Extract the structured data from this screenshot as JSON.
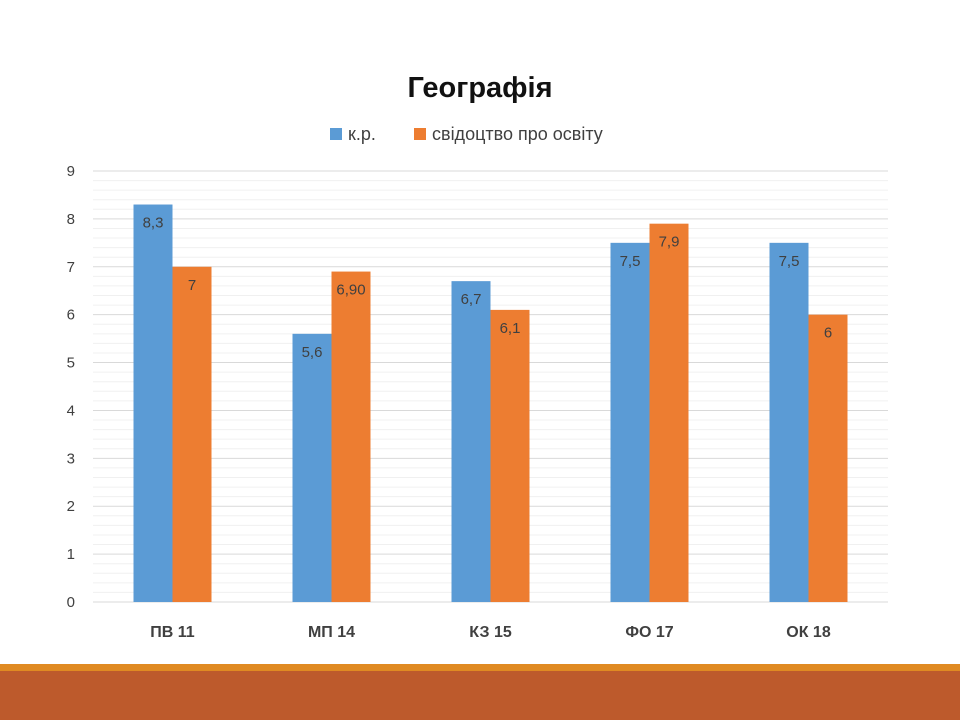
{
  "chart_data": {
    "type": "bar",
    "title": "Географія",
    "categories": [
      "ПВ 11",
      "МП 14",
      "КЗ 15",
      "ФО 17",
      "ОК 18"
    ],
    "series": [
      {
        "name": "к.р.",
        "color": "#5b9bd5",
        "values": [
          8.3,
          5.6,
          6.7,
          7.5,
          7.5
        ],
        "labels": [
          "8,3",
          "5,6",
          "6,7",
          "7,5",
          "7,5"
        ]
      },
      {
        "name": "свідоцтво про освіту",
        "color": "#ed7d31",
        "values": [
          7,
          6.9,
          6.1,
          7.9,
          6
        ],
        "labels": [
          "7",
          "6,90",
          "6,1",
          "7,9",
          "6"
        ]
      }
    ],
    "ylim": [
      0,
      9
    ],
    "yticks": [
      0,
      1,
      2,
      3,
      4,
      5,
      6,
      7,
      8,
      9
    ],
    "minor_grid_step": 0.2,
    "xlabel": "",
    "ylabel": "",
    "legend": "top"
  }
}
